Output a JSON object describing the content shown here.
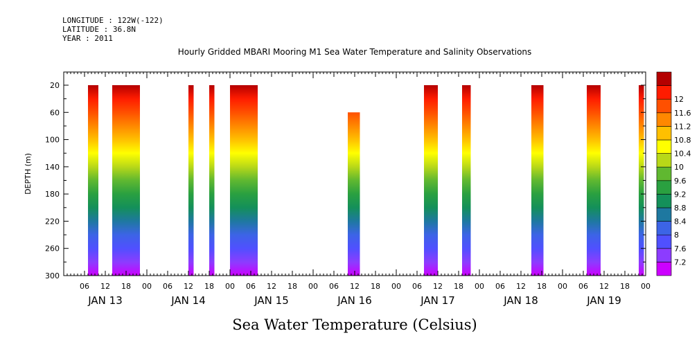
{
  "header": {
    "longitude": "LONGITUDE : 122W(-122)",
    "latitude": "LATITUDE : 36.8N",
    "year": "YEAR : 2011"
  },
  "chart_data": {
    "type": "heatmap",
    "title": "Hourly Gridded MBARI Mooring M1 Sea Water Temperature and Salinity Observations",
    "xlabel": "Sea Water Temperature (Celsius)",
    "ylabel": "DEPTH (m)",
    "x_range_hours": [
      0,
      168
    ],
    "ylim": [
      300,
      5
    ],
    "y_ticks": [
      20,
      60,
      100,
      140,
      180,
      220,
      260,
      300
    ],
    "hour_tick_labels": [
      "06",
      "12",
      "18",
      "00"
    ],
    "day_labels": [
      "JAN 13",
      "JAN 14",
      "JAN 15",
      "JAN 16",
      "JAN 17",
      "JAN 18",
      "JAN 19"
    ],
    "colorbar": {
      "levels": [
        7.2,
        7.6,
        8,
        8.4,
        8.8,
        9.2,
        9.6,
        10,
        10.4,
        10.8,
        11.2,
        11.6,
        12
      ],
      "colors": [
        "#cc00ff",
        "#8c3cff",
        "#5050ff",
        "#3c64e6",
        "#1e78a0",
        "#14905a",
        "#2aa040",
        "#60b830",
        "#b8d818",
        "#ffff00",
        "#ffc000",
        "#ff8800",
        "#ff5000",
        "#ff1c00",
        "#b40000"
      ]
    },
    "series": [
      {
        "start_hour": 7,
        "end_hour": 10,
        "top_depth": 20,
        "max_depth": 300
      },
      {
        "start_hour": 14,
        "end_hour": 22,
        "top_depth": 20,
        "max_depth": 300
      },
      {
        "start_hour": 36,
        "end_hour": 37.5,
        "top_depth": 20,
        "max_depth": 300
      },
      {
        "start_hour": 42,
        "end_hour": 43.5,
        "top_depth": 20,
        "max_depth": 300
      },
      {
        "start_hour": 48,
        "end_hour": 56,
        "top_depth": 20,
        "max_depth": 300
      },
      {
        "start_hour": 82,
        "end_hour": 85.5,
        "top_depth": 60,
        "max_depth": 300
      },
      {
        "start_hour": 104,
        "end_hour": 108,
        "top_depth": 20,
        "max_depth": 300
      },
      {
        "start_hour": 115,
        "end_hour": 117.5,
        "top_depth": 20,
        "max_depth": 300
      },
      {
        "start_hour": 135,
        "end_hour": 138.5,
        "top_depth": 20,
        "max_depth": 300
      },
      {
        "start_hour": 151,
        "end_hour": 155,
        "top_depth": 20,
        "max_depth": 300
      },
      {
        "start_hour": 166,
        "end_hour": 167.5,
        "top_depth": 20,
        "max_depth": 300
      }
    ]
  }
}
